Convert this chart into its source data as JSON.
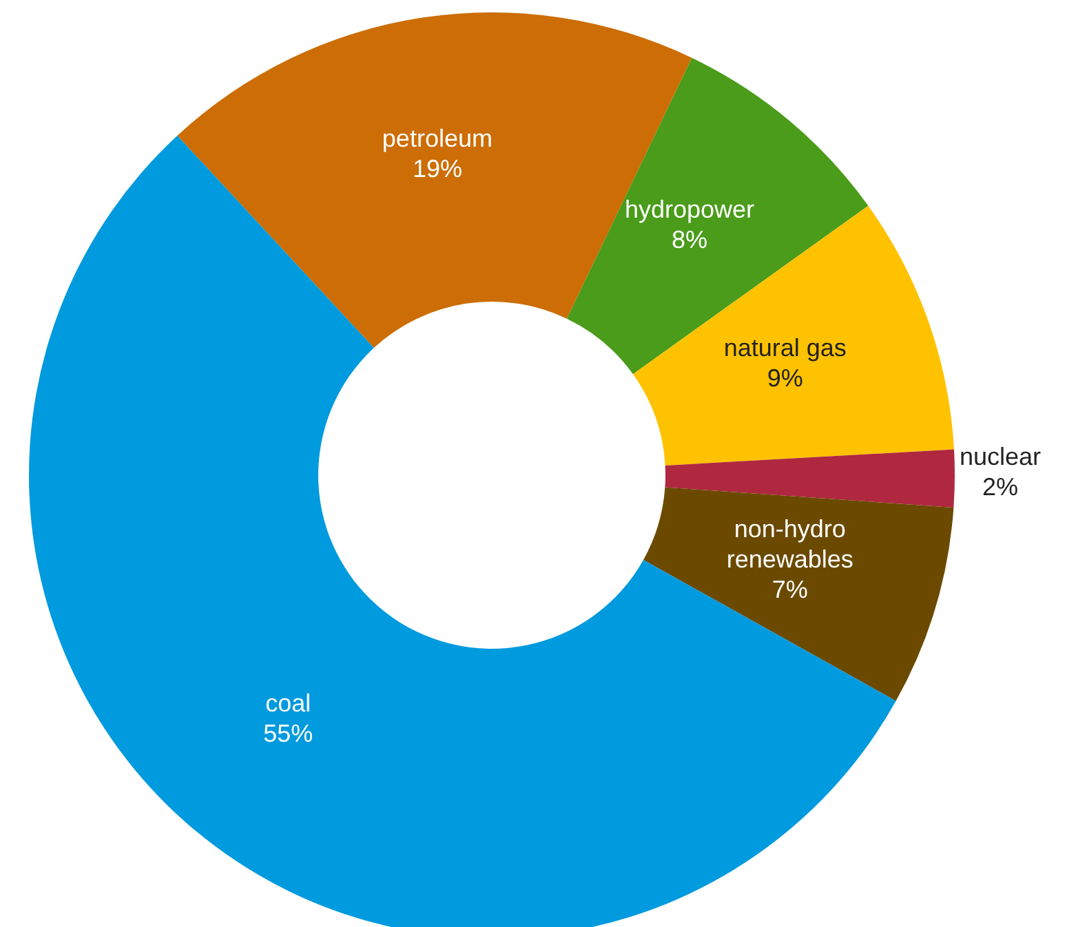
{
  "chart_data": {
    "type": "donut",
    "categories": [
      "petroleum",
      "hydropower",
      "natural gas",
      "nuclear",
      "non-hydro renewables",
      "coal"
    ],
    "values": [
      19,
      8,
      9,
      2,
      7,
      55
    ],
    "value_labels": [
      "19%",
      "8%",
      "9%",
      "2%",
      "7%",
      "55%"
    ],
    "colors": [
      "#cc6d05",
      "#4a9c1a",
      "#ffc200",
      "#b02840",
      "#6b4a00",
      "#009ade"
    ]
  }
}
